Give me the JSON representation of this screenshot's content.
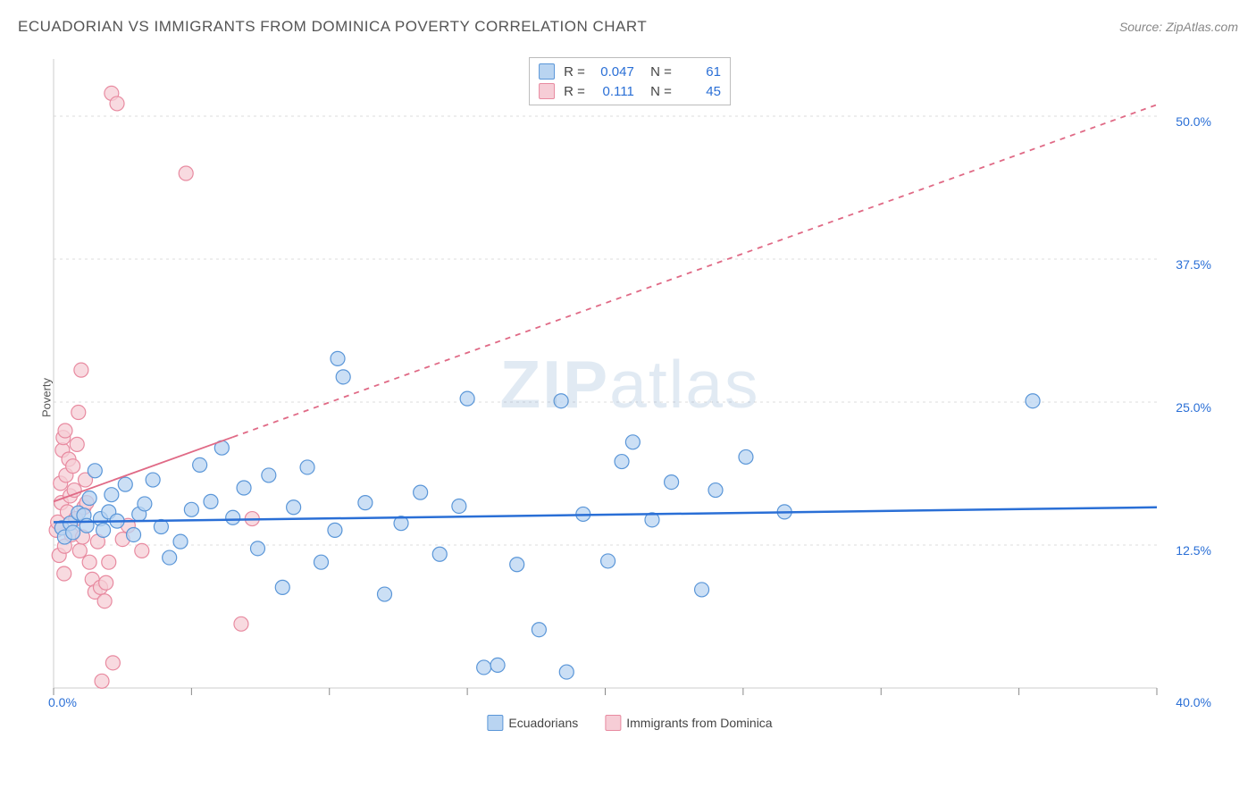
{
  "header": {
    "title": "ECUADORIAN VS IMMIGRANTS FROM DOMINICA POVERTY CORRELATION CHART",
    "source_prefix": "Source: ",
    "source_name": "ZipAtlas.com"
  },
  "chart": {
    "type": "scatter",
    "ylabel": "Poverty",
    "watermark": "ZIPatlas",
    "background_color": "#ffffff",
    "grid_color": "#dddddd",
    "axis_line_color": "#cccccc",
    "axis_tick_color": "#888888",
    "axis_label_color": "#2a6fd6",
    "x_axis": {
      "min_label": "0.0%",
      "max_label": "40.0%",
      "min": 0.0,
      "max": 40.0,
      "ticks": [
        0,
        5,
        10,
        15,
        20,
        25,
        30,
        35,
        40
      ]
    },
    "y_axis": {
      "min": 0.0,
      "max": 55.0,
      "gridlines": [
        12.5,
        25.0,
        37.5,
        50.0
      ],
      "labels": [
        "12.5%",
        "25.0%",
        "37.5%",
        "50.0%"
      ]
    },
    "marker_radius": 8,
    "series": [
      {
        "name": "Ecuadorians",
        "fill": "#b9d4f1",
        "stroke": "#5a96d8",
        "stroke_width": 1.2,
        "fill_opacity": 0.75,
        "trend": {
          "y_at_xmin": 14.5,
          "y_at_xmax": 15.8,
          "stroke": "#2a6fd6",
          "width": 2.5,
          "dash": "none"
        },
        "stats": {
          "R": "0.047",
          "N": "61"
        },
        "points": [
          [
            0.3,
            14.0
          ],
          [
            0.4,
            13.2
          ],
          [
            0.6,
            14.4
          ],
          [
            0.7,
            13.6
          ],
          [
            0.9,
            15.3
          ],
          [
            1.1,
            15.1
          ],
          [
            1.2,
            14.2
          ],
          [
            1.3,
            16.6
          ],
          [
            1.5,
            19.0
          ],
          [
            1.7,
            14.8
          ],
          [
            1.8,
            13.8
          ],
          [
            2.0,
            15.4
          ],
          [
            2.1,
            16.9
          ],
          [
            2.3,
            14.6
          ],
          [
            2.6,
            17.8
          ],
          [
            2.9,
            13.4
          ],
          [
            3.1,
            15.2
          ],
          [
            3.3,
            16.1
          ],
          [
            3.6,
            18.2
          ],
          [
            3.9,
            14.1
          ],
          [
            4.2,
            11.4
          ],
          [
            4.6,
            12.8
          ],
          [
            5.0,
            15.6
          ],
          [
            5.3,
            19.5
          ],
          [
            5.7,
            16.3
          ],
          [
            6.1,
            21.0
          ],
          [
            6.5,
            14.9
          ],
          [
            6.9,
            17.5
          ],
          [
            7.4,
            12.2
          ],
          [
            7.8,
            18.6
          ],
          [
            8.3,
            8.8
          ],
          [
            8.7,
            15.8
          ],
          [
            9.2,
            19.3
          ],
          [
            9.7,
            11.0
          ],
          [
            10.2,
            13.8
          ],
          [
            10.3,
            28.8
          ],
          [
            10.5,
            27.2
          ],
          [
            11.3,
            16.2
          ],
          [
            12.0,
            8.2
          ],
          [
            12.6,
            14.4
          ],
          [
            13.3,
            17.1
          ],
          [
            14.0,
            11.7
          ],
          [
            14.7,
            15.9
          ],
          [
            15.0,
            25.3
          ],
          [
            15.6,
            1.8
          ],
          [
            16.1,
            2.0
          ],
          [
            16.8,
            10.8
          ],
          [
            17.6,
            5.1
          ],
          [
            18.4,
            25.1
          ],
          [
            18.6,
            1.4
          ],
          [
            19.2,
            15.2
          ],
          [
            20.1,
            11.1
          ],
          [
            20.6,
            19.8
          ],
          [
            21.0,
            21.5
          ],
          [
            21.7,
            14.7
          ],
          [
            22.4,
            18.0
          ],
          [
            23.5,
            8.6
          ],
          [
            24.0,
            17.3
          ],
          [
            25.1,
            20.2
          ],
          [
            26.5,
            15.4
          ],
          [
            35.5,
            25.1
          ]
        ]
      },
      {
        "name": "Immigrants from Dominica",
        "fill": "#f6cdd6",
        "stroke": "#e88aa0",
        "stroke_width": 1.2,
        "fill_opacity": 0.75,
        "trend": {
          "y_at_xmin": 16.3,
          "y_at_xmax": 51.0,
          "stroke": "#e06a86",
          "width": 1.8,
          "dash": "6,6",
          "solid_until_x": 6.5
        },
        "stats": {
          "R": "0.111",
          "N": "45"
        },
        "points": [
          [
            0.1,
            13.8
          ],
          [
            0.15,
            14.5
          ],
          [
            0.2,
            11.6
          ],
          [
            0.25,
            17.9
          ],
          [
            0.28,
            16.2
          ],
          [
            0.3,
            14.0
          ],
          [
            0.32,
            20.8
          ],
          [
            0.35,
            21.9
          ],
          [
            0.38,
            10.0
          ],
          [
            0.4,
            12.4
          ],
          [
            0.42,
            22.5
          ],
          [
            0.45,
            18.6
          ],
          [
            0.5,
            15.4
          ],
          [
            0.55,
            20.0
          ],
          [
            0.6,
            16.8
          ],
          [
            0.65,
            13.4
          ],
          [
            0.7,
            19.4
          ],
          [
            0.75,
            17.3
          ],
          [
            0.8,
            14.8
          ],
          [
            0.85,
            21.3
          ],
          [
            0.9,
            24.1
          ],
          [
            0.95,
            12.0
          ],
          [
            1.0,
            27.8
          ],
          [
            1.05,
            13.2
          ],
          [
            1.1,
            15.8
          ],
          [
            1.15,
            18.2
          ],
          [
            1.2,
            16.2
          ],
          [
            1.3,
            11.0
          ],
          [
            1.4,
            9.5
          ],
          [
            1.5,
            8.4
          ],
          [
            1.6,
            12.8
          ],
          [
            1.7,
            8.8
          ],
          [
            1.75,
            0.6
          ],
          [
            1.85,
            7.6
          ],
          [
            1.9,
            9.2
          ],
          [
            2.0,
            11.0
          ],
          [
            2.1,
            52.0
          ],
          [
            2.15,
            2.2
          ],
          [
            2.3,
            51.1
          ],
          [
            2.5,
            13.0
          ],
          [
            2.7,
            14.2
          ],
          [
            3.2,
            12.0
          ],
          [
            4.8,
            45.0
          ],
          [
            6.8,
            5.6
          ],
          [
            7.2,
            14.8
          ]
        ]
      }
    ],
    "bottom_legend": {
      "items": [
        {
          "label": "Ecuadorians",
          "fill": "#b9d4f1",
          "stroke": "#5a96d8"
        },
        {
          "label": "Immigrants from Dominica",
          "fill": "#f6cdd6",
          "stroke": "#e88aa0"
        }
      ]
    }
  }
}
